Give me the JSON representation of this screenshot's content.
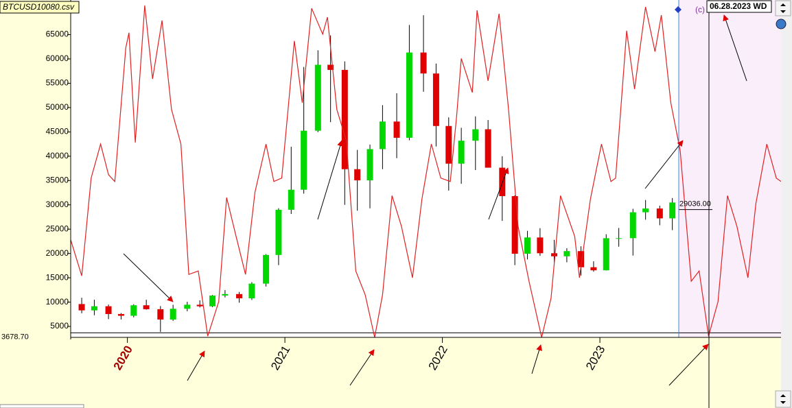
{
  "chart_data": {
    "type": "candlestick",
    "title": "BTCUSD10080.csv",
    "date_label": "06.28.2023 WD",
    "corner_text": "(c)",
    "xlim": [
      2019.64,
      2024.15
    ],
    "xticks": [
      2020,
      2021,
      2022,
      2023
    ],
    "ylim": [
      2750,
      72120
    ],
    "yticks": [
      5000,
      10000,
      15000,
      20000,
      25000,
      30000,
      35000,
      40000,
      45000,
      50000,
      55000,
      60000,
      65000
    ],
    "price_line": {
      "value": 29036,
      "label": "29036.00"
    },
    "base_line": {
      "value": 3678.7,
      "label": "3678.70"
    },
    "up_color": "#00d800",
    "down_color": "#e00000",
    "x": [
      2019.71,
      2019.79,
      2019.88,
      2019.96,
      2020.04,
      2020.12,
      2020.21,
      2020.29,
      2020.38,
      2020.46,
      2020.54,
      2020.62,
      2020.71,
      2020.79,
      2020.88,
      2020.96,
      2021.04,
      2021.12,
      2021.21,
      2021.29,
      2021.38,
      2021.46,
      2021.54,
      2021.62,
      2021.71,
      2021.79,
      2021.88,
      2021.96,
      2022.04,
      2022.12,
      2022.21,
      2022.29,
      2022.38,
      2022.46,
      2022.54,
      2022.62,
      2022.71,
      2022.79,
      2022.88,
      2022.96,
      2023.04,
      2023.12,
      2023.21,
      2023.29,
      2023.38,
      2023.46
    ],
    "open": [
      9600,
      8300,
      9150,
      7550,
      7190,
      9350,
      8540,
      6410,
      8630,
      9460,
      9140,
      11350,
      11660,
      10780,
      13800,
      19700,
      28990,
      33110,
      45240,
      58800,
      57750,
      37330,
      35040,
      41460,
      47130,
      43790,
      61320,
      57010,
      46210,
      38470,
      43190,
      45540,
      37640,
      31790,
      19940,
      23290,
      20050,
      19420,
      20490,
      17170,
      16540,
      23140,
      23150,
      28470,
      29250,
      27220
    ],
    "high": [
      10900,
      10500,
      9500,
      7750,
      9560,
      10500,
      9190,
      9460,
      10070,
      10380,
      11460,
      12470,
      12090,
      14100,
      19860,
      29300,
      41950,
      58350,
      61780,
      64850,
      59500,
      41300,
      42400,
      50500,
      52950,
      67000,
      69000,
      59050,
      47990,
      45850,
      48190,
      47440,
      40000,
      31960,
      24650,
      25200,
      22800,
      21080,
      21480,
      18390,
      23960,
      25250,
      29190,
      31000,
      29830,
      31400
    ],
    "low": [
      7700,
      7300,
      6500,
      6430,
      6870,
      8450,
      3850,
      6150,
      8120,
      8900,
      8970,
      10960,
      9880,
      10430,
      13200,
      17600,
      28130,
      32300,
      44950,
      47000,
      30000,
      28800,
      29280,
      37330,
      39600,
      43280,
      53250,
      42000,
      32930,
      34320,
      37150,
      37700,
      26700,
      17600,
      18780,
      19520,
      18150,
      18190,
      15480,
      16260,
      16500,
      21400,
      19570,
      26950,
      25810,
      24800
    ],
    "close": [
      8300,
      9150,
      7550,
      7190,
      9350,
      8540,
      6410,
      8630,
      9460,
      9140,
      11350,
      11660,
      10780,
      13800,
      19700,
      28990,
      33110,
      45240,
      58800,
      57750,
      37330,
      35040,
      41460,
      47130,
      43790,
      61320,
      57010,
      46210,
      38470,
      43190,
      45540,
      37640,
      31790,
      19940,
      23290,
      20050,
      19420,
      20490,
      17170,
      16540,
      23140,
      23150,
      28470,
      29250,
      27220,
      30480
    ],
    "cycle": {
      "color": "#e02020",
      "x": [
        2019.64,
        2019.71,
        2019.77,
        2019.83,
        2019.88,
        2019.92,
        2019.99,
        2020.01,
        2020.05,
        2020.11,
        2020.16,
        2020.22,
        2020.28,
        2020.34,
        2020.39,
        2020.45,
        2020.51,
        2020.58,
        2020.63,
        2020.69,
        2020.75,
        2020.81,
        2020.88,
        2020.93,
        2020.98,
        2021.06,
        2021.11,
        2021.17,
        2021.24,
        2021.27,
        2021.33,
        2021.39,
        2021.45,
        2021.51,
        2021.57,
        2021.62,
        2021.68,
        2021.74,
        2021.81,
        2021.87,
        2021.93,
        2021.99,
        2022.05,
        2022.09,
        2022.12,
        2022.19,
        2022.22,
        2022.29,
        2022.36,
        2022.42,
        2022.48,
        2022.55,
        2022.63,
        2022.69,
        2022.75,
        2022.84,
        2022.87,
        2022.94,
        2023.01,
        2023.07,
        2023.1,
        2023.17,
        2023.22,
        2023.29,
        2023.35,
        2023.39,
        2023.45,
        2023.51,
        2023.58,
        2023.63,
        2023.69,
        2023.75,
        2023.81,
        2023.87,
        2023.94,
        2023.99,
        2024.06,
        2024.12,
        2024.15
      ],
      "values": [
        22800,
        15400,
        35500,
        42500,
        36200,
        34800,
        62300,
        65400,
        42800,
        71000,
        55900,
        67900,
        49600,
        42500,
        15700,
        16400,
        3000,
        10100,
        31500,
        23500,
        15700,
        32600,
        42500,
        34800,
        35500,
        63700,
        51000,
        70400,
        65100,
        68600,
        49600,
        43200,
        16400,
        11500,
        2750,
        11500,
        31900,
        25600,
        15000,
        31200,
        42500,
        35500,
        34800,
        48200,
        60100,
        53100,
        70000,
        55500,
        69300,
        49600,
        25600,
        14300,
        2750,
        10800,
        31900,
        23500,
        15000,
        31200,
        42500,
        34800,
        35500,
        65800,
        53800,
        70700,
        61500,
        69000,
        51000,
        41100,
        14300,
        16400,
        3000,
        10100,
        31900,
        25600,
        15000,
        30200,
        42500,
        35500,
        34800
      ]
    }
  }
}
